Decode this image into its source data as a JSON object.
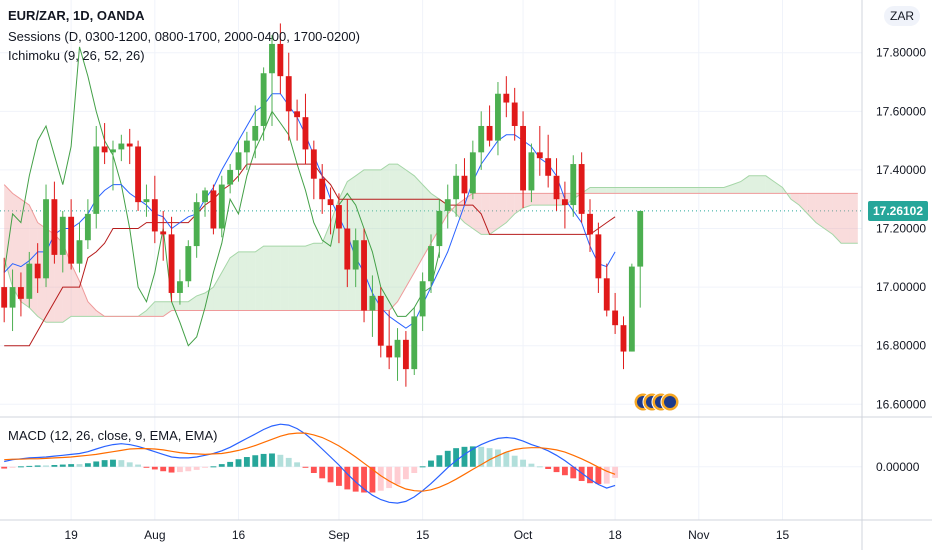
{
  "header": {
    "title": "EUR/ZAR, 1D, OANDA",
    "sessions": "Sessions (D, 0300-1200, 0800-1700, 2000-0400, 1700-0200)",
    "ichimoku": "Ichimoku (9, 26, 52, 26)",
    "symbol_badge": "ZAR"
  },
  "macd_legend": "MACD (12, 26, close, 9, EMA, EMA)",
  "last_price_label": "17.26102",
  "colors": {
    "up": "#4caf50",
    "down": "#e01919",
    "conversion": "#2962ff",
    "base": "#b71c1c",
    "lagging": "#43a047",
    "cloud_bull": "#a5d6a7",
    "cloud_bear": "#ef9a9a",
    "macd_line": "#2962ff",
    "signal_line": "#ff6d00",
    "hist_up_strong": "#26a69a",
    "hist_up_weak": "#b2dfdb",
    "hist_down_strong": "#ff5252",
    "hist_down_weak": "#ffcdd2",
    "price_tag": "#26a69a"
  },
  "chart_data": {
    "type": "candlestick",
    "price_axis": {
      "ylim": [
        16.56,
        17.98
      ],
      "ticks": [
        "17.80000",
        "17.60000",
        "17.40000",
        "17.20000",
        "17.00000",
        "16.80000",
        "16.60000"
      ],
      "tick_values": [
        17.8,
        17.6,
        17.4,
        17.2,
        17.0,
        16.8,
        16.6
      ]
    },
    "macd_axis": {
      "ticks": [
        "0.00000"
      ],
      "tick_values": [
        0.0
      ]
    },
    "x_ticks": [
      {
        "label": "19",
        "index": 8
      },
      {
        "label": "Aug",
        "index": 18
      },
      {
        "label": "16",
        "index": 28
      },
      {
        "label": "Sep",
        "index": 40
      },
      {
        "label": "15",
        "index": 50
      },
      {
        "label": "Oct",
        "index": 62
      },
      {
        "label": "18",
        "index": 73
      },
      {
        "label": "Nov",
        "index": 83
      },
      {
        "label": "15",
        "index": 93
      }
    ],
    "total_bars": 103,
    "candles": [
      [
        17.0,
        17.1,
        16.88,
        16.93
      ],
      [
        16.93,
        17.06,
        16.85,
        17.0
      ],
      [
        17.0,
        17.05,
        16.9,
        16.96
      ],
      [
        16.96,
        17.12,
        16.93,
        17.08
      ],
      [
        17.08,
        17.15,
        16.98,
        17.03
      ],
      [
        17.03,
        17.35,
        17.0,
        17.3
      ],
      [
        17.3,
        17.36,
        17.08,
        17.11
      ],
      [
        17.11,
        17.26,
        17.05,
        17.24
      ],
      [
        17.24,
        17.3,
        17.06,
        17.08
      ],
      [
        17.08,
        17.22,
        17.05,
        17.16
      ],
      [
        17.16,
        17.3,
        17.13,
        17.25
      ],
      [
        17.25,
        17.55,
        17.2,
        17.48
      ],
      [
        17.48,
        17.56,
        17.42,
        17.46
      ],
      [
        17.46,
        17.5,
        17.33,
        17.47
      ],
      [
        17.47,
        17.52,
        17.43,
        17.49
      ],
      [
        17.49,
        17.54,
        17.42,
        17.48
      ],
      [
        17.48,
        17.5,
        17.26,
        17.29
      ],
      [
        17.29,
        17.35,
        17.24,
        17.3
      ],
      [
        17.3,
        17.38,
        17.15,
        17.19
      ],
      [
        17.19,
        17.26,
        17.09,
        17.18
      ],
      [
        17.18,
        17.24,
        16.95,
        16.98
      ],
      [
        16.98,
        17.06,
        16.94,
        17.02
      ],
      [
        17.02,
        17.16,
        17.0,
        17.14
      ],
      [
        17.14,
        17.32,
        17.1,
        17.29
      ],
      [
        17.29,
        17.34,
        17.24,
        17.33
      ],
      [
        17.33,
        17.35,
        17.18,
        17.2
      ],
      [
        17.2,
        17.38,
        17.17,
        17.35
      ],
      [
        17.35,
        17.42,
        17.32,
        17.4
      ],
      [
        17.4,
        17.5,
        17.36,
        17.46
      ],
      [
        17.46,
        17.53,
        17.4,
        17.5
      ],
      [
        17.5,
        17.62,
        17.44,
        17.55
      ],
      [
        17.55,
        17.75,
        17.5,
        17.73
      ],
      [
        17.73,
        17.86,
        17.55,
        17.83
      ],
      [
        17.83,
        17.9,
        17.66,
        17.72
      ],
      [
        17.72,
        17.8,
        17.5,
        17.6
      ],
      [
        17.6,
        17.64,
        17.5,
        17.58
      ],
      [
        17.58,
        17.66,
        17.42,
        17.47
      ],
      [
        17.47,
        17.5,
        17.3,
        17.37
      ],
      [
        17.37,
        17.42,
        17.25,
        17.3
      ],
      [
        17.3,
        17.34,
        17.18,
        17.28
      ],
      [
        17.28,
        17.32,
        17.15,
        17.2
      ],
      [
        17.2,
        17.3,
        17.0,
        17.06
      ],
      [
        17.06,
        17.2,
        17.0,
        17.16
      ],
      [
        17.16,
        17.2,
        16.88,
        16.92
      ],
      [
        16.92,
        17.04,
        16.83,
        16.97
      ],
      [
        16.97,
        17.0,
        16.76,
        16.8
      ],
      [
        16.8,
        16.92,
        16.72,
        16.76
      ],
      [
        16.76,
        16.86,
        16.68,
        16.82
      ],
      [
        16.82,
        16.85,
        16.66,
        16.72
      ],
      [
        16.72,
        16.93,
        16.7,
        16.9
      ],
      [
        16.9,
        17.05,
        16.85,
        17.02
      ],
      [
        17.02,
        17.18,
        16.98,
        17.14
      ],
      [
        17.14,
        17.3,
        17.1,
        17.26
      ],
      [
        17.26,
        17.35,
        17.2,
        17.3
      ],
      [
        17.3,
        17.42,
        17.24,
        17.38
      ],
      [
        17.38,
        17.44,
        17.28,
        17.32
      ],
      [
        17.32,
        17.5,
        17.3,
        17.46
      ],
      [
        17.46,
        17.6,
        17.4,
        17.55
      ],
      [
        17.55,
        17.62,
        17.48,
        17.5
      ],
      [
        17.5,
        17.7,
        17.45,
        17.66
      ],
      [
        17.66,
        17.72,
        17.58,
        17.63
      ],
      [
        17.63,
        17.68,
        17.5,
        17.55
      ],
      [
        17.55,
        17.6,
        17.27,
        17.33
      ],
      [
        17.33,
        17.49,
        17.29,
        17.46
      ],
      [
        17.46,
        17.55,
        17.38,
        17.44
      ],
      [
        17.44,
        17.52,
        17.34,
        17.38
      ],
      [
        17.38,
        17.44,
        17.26,
        17.3
      ],
      [
        17.3,
        17.36,
        17.2,
        17.28
      ],
      [
        17.28,
        17.45,
        17.24,
        17.42
      ],
      [
        17.42,
        17.46,
        17.22,
        17.25
      ],
      [
        17.25,
        17.3,
        17.12,
        17.18
      ],
      [
        17.18,
        17.22,
        16.98,
        17.03
      ],
      [
        17.03,
        17.08,
        16.9,
        16.92
      ],
      [
        16.92,
        16.98,
        16.84,
        16.87
      ],
      [
        16.87,
        16.9,
        16.72,
        16.78
      ],
      [
        16.78,
        17.08,
        16.78,
        17.07
      ],
      [
        17.07,
        17.26,
        16.93,
        17.26
      ]
    ],
    "conversion_line": [
      17.05,
      17.08,
      17.07,
      17.09,
      17.12,
      17.12,
      17.18,
      17.2,
      17.2,
      17.22,
      17.25,
      17.3,
      17.33,
      17.35,
      17.35,
      17.32,
      17.3,
      17.28,
      17.25,
      17.24,
      17.2,
      17.22,
      17.24,
      17.25,
      17.3,
      17.34,
      17.4,
      17.45,
      17.5,
      17.55,
      17.6,
      17.62,
      17.66,
      17.66,
      17.62,
      17.58,
      17.52,
      17.45,
      17.38,
      17.3,
      17.24,
      17.18,
      17.1,
      17.05,
      16.98,
      16.93,
      16.9,
      16.88,
      16.86,
      16.88,
      16.94,
      17.0,
      17.06,
      17.12,
      17.2,
      17.28,
      17.36,
      17.42,
      17.46,
      17.5,
      17.52,
      17.52,
      17.5,
      17.48,
      17.44,
      17.42,
      17.38,
      17.3,
      17.26,
      17.22,
      17.14,
      17.08,
      17.07,
      17.12
    ],
    "base_line": [
      16.8,
      16.8,
      16.8,
      16.8,
      16.85,
      16.9,
      16.95,
      17.0,
      17.0,
      17.0,
      17.1,
      17.12,
      17.15,
      17.2,
      17.2,
      17.2,
      17.2,
      17.22,
      17.22,
      17.22,
      17.22,
      17.22,
      17.22,
      17.25,
      17.28,
      17.3,
      17.33,
      17.35,
      17.38,
      17.42,
      17.42,
      17.42,
      17.42,
      17.42,
      17.42,
      17.42,
      17.42,
      17.42,
      17.38,
      17.35,
      17.3,
      17.3,
      17.3,
      17.3,
      17.3,
      17.3,
      17.3,
      17.3,
      17.3,
      17.3,
      17.3,
      17.3,
      17.3,
      17.28,
      17.28,
      17.28,
      17.28,
      17.25,
      17.18,
      17.18,
      17.18,
      17.18,
      17.18,
      17.18,
      17.18,
      17.18,
      17.18,
      17.18,
      17.18,
      17.18,
      17.18,
      17.2,
      17.22,
      17.24
    ],
    "lagging_span": [
      17.05,
      17.25,
      17.22,
      17.38,
      17.5,
      17.55,
      17.45,
      17.35,
      17.48,
      17.82,
      17.72,
      17.6,
      17.5,
      17.45,
      17.35,
      17.2,
      17.0,
      16.95,
      17.05,
      17.2,
      16.95,
      16.88,
      16.8,
      16.83,
      16.93,
      17.05,
      17.15,
      17.3,
      17.25,
      17.38,
      17.47,
      17.53,
      17.6,
      17.56,
      17.52,
      17.42,
      17.33,
      17.22,
      17.16,
      17.14,
      17.28,
      17.32,
      17.28,
      17.2,
      17.12,
      17.0,
      16.95,
      16.9,
      16.9,
      16.93,
      16.98,
      17.0,
      17.12
    ],
    "lagging_start_index": 0,
    "cloud_start_index": 0,
    "span_a": [
      17.1,
      17.0,
      16.95,
      16.93,
      16.9,
      16.88,
      16.88,
      16.88,
      16.9,
      16.9,
      16.9,
      16.9,
      16.9,
      16.9,
      16.9,
      16.9,
      16.9,
      16.92,
      16.95,
      16.95,
      16.95,
      16.95,
      16.95,
      16.97,
      16.98,
      17.0,
      17.05,
      17.1,
      17.12,
      17.12,
      17.12,
      17.14,
      17.14,
      17.14,
      17.14,
      17.14,
      17.14,
      17.15,
      17.15,
      17.22,
      17.3,
      17.36,
      17.38,
      17.4,
      17.4,
      17.4,
      17.42,
      17.42,
      17.4,
      17.38,
      17.35,
      17.32,
      17.3,
      17.28,
      17.25,
      17.22,
      17.2,
      17.18,
      17.18,
      17.2,
      17.22,
      17.25,
      17.27,
      17.28,
      17.28,
      17.28,
      17.28,
      17.28,
      17.3,
      17.32,
      17.34,
      17.34,
      17.34,
      17.34,
      17.34,
      17.34,
      17.34,
      17.34,
      17.34,
      17.34,
      17.34,
      17.34,
      17.34,
      17.34,
      17.34,
      17.34,
      17.34,
      17.35,
      17.36,
      17.38,
      17.38,
      17.38,
      17.36,
      17.34,
      17.3,
      17.28,
      17.25,
      17.22,
      17.2,
      17.18,
      17.15,
      17.15,
      17.15
    ],
    "span_b": [
      17.35,
      17.32,
      17.3,
      17.28,
      17.22,
      17.2,
      17.18,
      17.15,
      17.08,
      17.02,
      16.95,
      16.92,
      16.9,
      16.9,
      16.9,
      16.9,
      16.9,
      16.9,
      16.9,
      16.9,
      16.92,
      16.92,
      16.92,
      16.92,
      16.92,
      16.92,
      16.92,
      16.92,
      16.92,
      16.92,
      16.92,
      16.92,
      16.92,
      16.92,
      16.92,
      16.92,
      16.92,
      16.92,
      16.92,
      16.92,
      16.92,
      16.92,
      16.92,
      16.92,
      16.92,
      16.92,
      16.92,
      16.95,
      17.0,
      17.05,
      17.1,
      17.15,
      17.2,
      17.25,
      17.28,
      17.3,
      17.32,
      17.32,
      17.32,
      17.32,
      17.32,
      17.32,
      17.32,
      17.32,
      17.32,
      17.32,
      17.32,
      17.32,
      17.32,
      17.32,
      17.32,
      17.32,
      17.32,
      17.32,
      17.32,
      17.32,
      17.32,
      17.32,
      17.32,
      17.32,
      17.32,
      17.32,
      17.32,
      17.32,
      17.32,
      17.32,
      17.32,
      17.32,
      17.32,
      17.32,
      17.32,
      17.32,
      17.32,
      17.32,
      17.32,
      17.32,
      17.32,
      17.32,
      17.32,
      17.32,
      17.32,
      17.32,
      17.32
    ],
    "macd_line": [
      0.012,
      0.016,
      0.018,
      0.02,
      0.021,
      0.022,
      0.024,
      0.026,
      0.028,
      0.03,
      0.034,
      0.04,
      0.046,
      0.05,
      0.052,
      0.05,
      0.046,
      0.04,
      0.034,
      0.028,
      0.022,
      0.02,
      0.02,
      0.022,
      0.026,
      0.03,
      0.036,
      0.044,
      0.054,
      0.064,
      0.074,
      0.084,
      0.092,
      0.096,
      0.094,
      0.086,
      0.074,
      0.058,
      0.04,
      0.022,
      0.004,
      -0.016,
      -0.034,
      -0.05,
      -0.064,
      -0.074,
      -0.08,
      -0.082,
      -0.078,
      -0.068,
      -0.054,
      -0.038,
      -0.02,
      -0.002,
      0.014,
      0.028,
      0.04,
      0.05,
      0.058,
      0.064,
      0.066,
      0.064,
      0.058,
      0.05,
      0.044,
      0.036,
      0.026,
      0.014,
      0.0,
      -0.014,
      -0.028,
      -0.04,
      -0.048,
      -0.042
    ],
    "signal_line": [
      0.016,
      0.017,
      0.017,
      0.018,
      0.018,
      0.019,
      0.02,
      0.021,
      0.022,
      0.024,
      0.026,
      0.028,
      0.031,
      0.034,
      0.037,
      0.04,
      0.041,
      0.041,
      0.04,
      0.038,
      0.035,
      0.032,
      0.03,
      0.029,
      0.028,
      0.029,
      0.03,
      0.033,
      0.037,
      0.042,
      0.048,
      0.055,
      0.062,
      0.069,
      0.074,
      0.076,
      0.076,
      0.072,
      0.066,
      0.057,
      0.047,
      0.035,
      0.022,
      0.008,
      -0.006,
      -0.02,
      -0.032,
      -0.042,
      -0.05,
      -0.054,
      -0.055,
      -0.052,
      -0.046,
      -0.038,
      -0.028,
      -0.017,
      -0.006,
      0.005,
      0.016,
      0.025,
      0.033,
      0.039,
      0.042,
      0.043,
      0.043,
      0.041,
      0.038,
      0.033,
      0.026,
      0.018,
      0.009,
      -0.001,
      -0.01,
      -0.017
    ],
    "macd_ylim": [
      -0.12,
      0.11
    ]
  }
}
